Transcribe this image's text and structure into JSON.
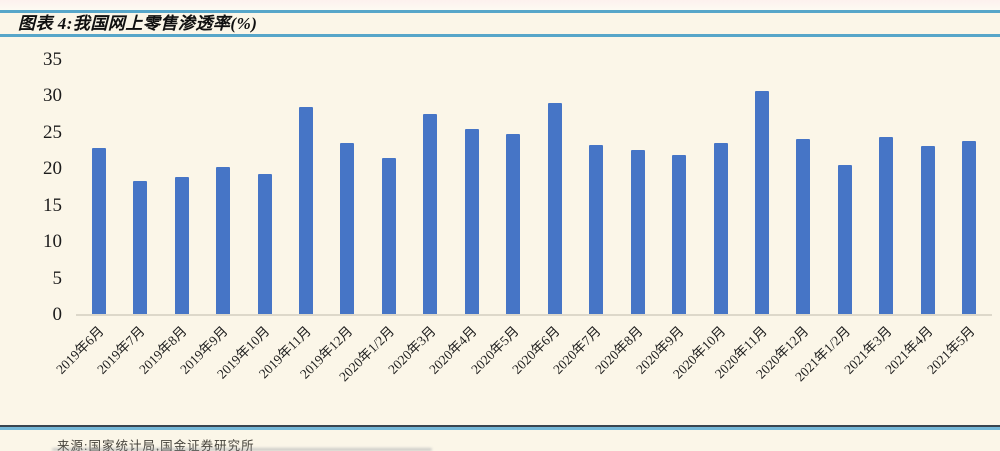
{
  "header": {
    "title": "图表 4:我国网上零售渗透率(%)"
  },
  "footer": {
    "source": "来源:国家统计局,国金证券研究所"
  },
  "colors": {
    "background": "#fbf6e8",
    "accent_rule_blue": "#57a6c9",
    "bar_blue": "#4675c6",
    "footer_dark_line": "#39444e",
    "footer_light_line": "#74b7d7"
  },
  "chart_data": {
    "type": "bar",
    "title": "我国网上零售渗透率(%)",
    "categories": [
      "2019年6月",
      "2019年7月",
      "2019年8月",
      "2019年9月",
      "2019年10月",
      "2019年11月",
      "2019年12月",
      "2020年1/2月",
      "2020年3月",
      "2020年4月",
      "2020年5月",
      "2020年6月",
      "2020年7月",
      "2020年8月",
      "2020年9月",
      "2020年10月",
      "2020年11月",
      "2020年12月",
      "2021年1/2月",
      "2021年3月",
      "2021年4月",
      "2021年5月"
    ],
    "values": [
      22.9,
      18.4,
      19.0,
      20.3,
      19.3,
      28.6,
      23.6,
      21.5,
      27.6,
      25.5,
      24.9,
      29.1,
      23.4,
      22.6,
      22.0,
      23.6,
      30.7,
      24.2,
      20.6,
      24.4,
      23.2,
      23.9
    ],
    "xlabel": "",
    "ylabel": "",
    "ylim": [
      0,
      35
    ],
    "yticks": [
      0,
      5,
      10,
      15,
      20,
      25,
      30,
      35
    ],
    "grid": false,
    "legend_position": "none",
    "x_tick_rotation_deg": 45
  }
}
